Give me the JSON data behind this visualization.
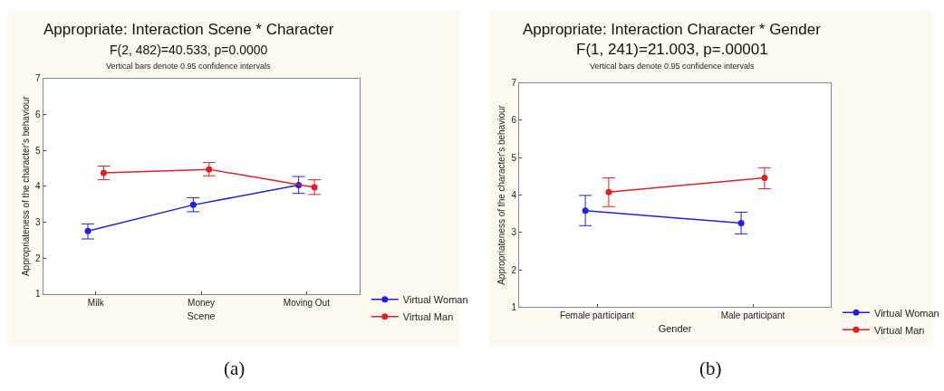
{
  "chart_data": [
    {
      "type": "line",
      "title": "Appropriate: Interaction Scene * Character",
      "subtitle": "F(2, 482)=40.533, p=0.0000",
      "annotations": [
        "Vertical bars denote 0.95 confidence intervals",
        "(a)"
      ],
      "xlabel": "Scene",
      "ylabel": "Appropriateness of the character's behaviour",
      "categories": [
        "Milk",
        "Money",
        "Moving Out"
      ],
      "series": [
        {
          "name": "Virtual Woman",
          "color": "#2020e0",
          "values": [
            2.75,
            3.48,
            4.03
          ],
          "errors": [
            [
              2.53,
              2.95
            ],
            [
              3.29,
              3.68
            ],
            [
              3.8,
              4.27
            ]
          ]
        },
        {
          "name": "Virtual Man",
          "color": "#e02020",
          "values": [
            4.37,
            4.47,
            3.97
          ],
          "errors": [
            [
              4.18,
              4.56
            ],
            [
              4.29,
              4.66
            ],
            [
              3.77,
              4.18
            ]
          ]
        }
      ],
      "ylim": [
        1,
        7
      ],
      "yticks": [
        1,
        2,
        3,
        4,
        5,
        6,
        7
      ],
      "marker": "circle",
      "grid": false,
      "legend": "bottom right"
    },
    {
      "type": "line",
      "title": "Appropriate: Interaction Character * Gender",
      "subtitle": "F(1, 241)=21.003, p=.00001",
      "annotations": [
        "Vertical bars denote 0.95 confidence intervals",
        "(b)"
      ],
      "xlabel": "Gender",
      "ylabel": "Appropriateness of the character's behaviour",
      "categories": [
        "Female participant",
        "Male participant"
      ],
      "series": [
        {
          "name": "Virtual Woman",
          "color": "#2020e0",
          "values": [
            3.58,
            3.25
          ],
          "errors": [
            [
              3.18,
              3.99
            ],
            [
              2.96,
              3.54
            ]
          ]
        },
        {
          "name": "Virtual Man",
          "color": "#e02020",
          "values": [
            4.08,
            4.46
          ],
          "errors": [
            [
              3.69,
              4.46
            ],
            [
              4.17,
              4.73
            ]
          ]
        }
      ],
      "ylim": [
        1,
        7
      ],
      "yticks": [
        1,
        2,
        3,
        4,
        5,
        6,
        7
      ],
      "marker": "circle",
      "grid": false,
      "legend": "bottom right"
    }
  ]
}
